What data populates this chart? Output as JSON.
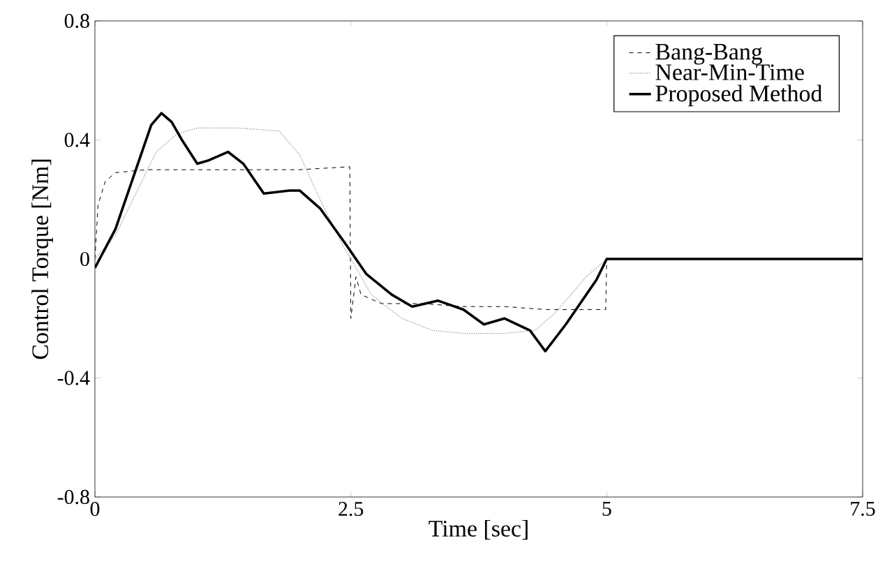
{
  "chart_data": {
    "type": "line",
    "xlabel": "Time [sec]",
    "ylabel": "Control Torque [Nm]",
    "xlim": [
      0,
      7.5
    ],
    "ylim": [
      -0.8,
      0.8
    ],
    "xticks": [
      0,
      2.5,
      5,
      7.5
    ],
    "yticks": [
      -0.8,
      -0.4,
      0,
      0.4,
      0.8
    ],
    "grid": false,
    "legend": "top right",
    "series": [
      {
        "name": "Bang-Bang",
        "color": "#000000",
        "line_style": "dashed",
        "x": [
          0,
          0.03,
          0.1,
          0.2,
          0.5,
          1.0,
          1.5,
          2.0,
          2.49,
          2.5,
          2.55,
          2.6,
          2.8,
          3.2,
          3.6,
          4.0,
          4.4,
          4.8,
          4.99,
          5.0,
          5.5,
          6.5,
          7.5
        ],
        "values": [
          0,
          0.18,
          0.26,
          0.29,
          0.3,
          0.3,
          0.3,
          0.3,
          0.31,
          -0.2,
          -0.06,
          -0.12,
          -0.15,
          -0.15,
          -0.16,
          -0.16,
          -0.17,
          -0.17,
          -0.17,
          0,
          0,
          0,
          0
        ]
      },
      {
        "name": "Near-Min-Time",
        "color": "#7f7f7f",
        "line_style": "dotted",
        "x": [
          0,
          0.2,
          0.4,
          0.6,
          0.8,
          1.0,
          1.4,
          1.8,
          2.0,
          2.2,
          2.4,
          2.5,
          2.7,
          3.0,
          3.3,
          3.6,
          4.0,
          4.3,
          4.5,
          4.8,
          5.0,
          5.5,
          6.5,
          7.5
        ],
        "values": [
          0,
          0.08,
          0.22,
          0.36,
          0.42,
          0.44,
          0.44,
          0.43,
          0.35,
          0.2,
          0.06,
          0.0,
          -0.12,
          -0.2,
          -0.24,
          -0.25,
          -0.25,
          -0.24,
          -0.18,
          -0.06,
          0,
          0,
          0,
          0
        ]
      },
      {
        "name": "Proposed Method",
        "color": "#000000",
        "line_style": "solid",
        "x": [
          0,
          0.2,
          0.4,
          0.55,
          0.65,
          0.75,
          0.85,
          1.0,
          1.1,
          1.3,
          1.45,
          1.55,
          1.65,
          1.9,
          2.0,
          2.2,
          2.45,
          2.65,
          2.9,
          3.1,
          3.35,
          3.6,
          3.8,
          4.0,
          4.25,
          4.4,
          4.6,
          4.9,
          5.0,
          5.5,
          6.5,
          7.5
        ],
        "values": [
          -0.03,
          0.1,
          0.3,
          0.45,
          0.49,
          0.46,
          0.4,
          0.32,
          0.33,
          0.36,
          0.32,
          0.27,
          0.22,
          0.23,
          0.23,
          0.17,
          0.05,
          -0.05,
          -0.12,
          -0.16,
          -0.14,
          -0.17,
          -0.22,
          -0.2,
          -0.24,
          -0.31,
          -0.22,
          -0.07,
          0,
          0,
          0,
          0
        ]
      }
    ]
  }
}
